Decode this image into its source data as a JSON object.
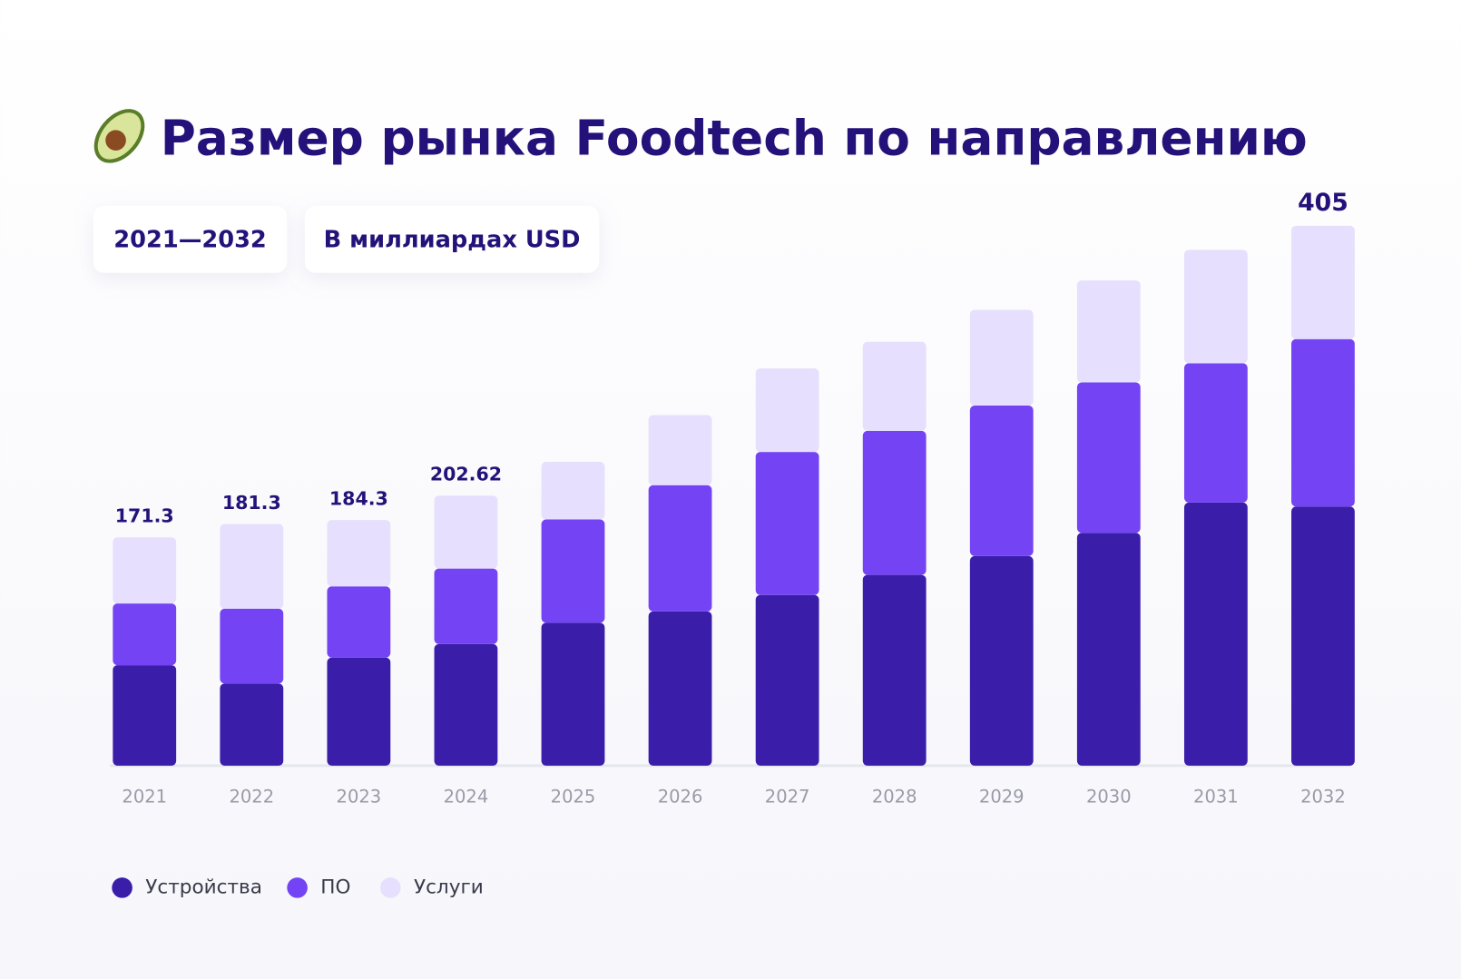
{
  "chart_data": {
    "type": "stacked_bar",
    "title": "Размер рынка Foodtech по направлению",
    "period": "2021—2032",
    "unit": "В миллиардах USD",
    "categories": [
      "2021",
      "2022",
      "2023",
      "2024",
      "2025",
      "2026",
      "2027",
      "2028",
      "2029",
      "2030",
      "2031",
      "2032"
    ],
    "series": [
      {
        "name": "Устройства",
        "color": "#3a1eaa",
        "values": [
          75.4,
          61.6,
          81.1,
          91.2,
          107.2,
          115.7,
          128.1,
          143.1,
          157.3,
          174.7,
          197.4,
          194.4
        ]
      },
      {
        "name": "ПО",
        "color": "#7444f4",
        "values": [
          46.3,
          56.2,
          53.4,
          56.7,
          77.5,
          94.7,
          107.3,
          108.1,
          112.9,
          112.8,
          104.5,
          125.6
        ]
      },
      {
        "name": "Услуги",
        "color": "#e6dffd",
        "values": [
          49.6,
          63.5,
          49.8,
          54.72,
          43.3,
          52.6,
          62.6,
          66.8,
          71.8,
          76.5,
          85.1,
          85.0
        ]
      }
    ],
    "totals": [
      171.3,
      181.3,
      184.3,
      202.62,
      null,
      null,
      null,
      null,
      null,
      null,
      null,
      405
    ],
    "ylim": [
      0,
      420
    ],
    "grid": false,
    "legend": "bottom-left"
  }
}
